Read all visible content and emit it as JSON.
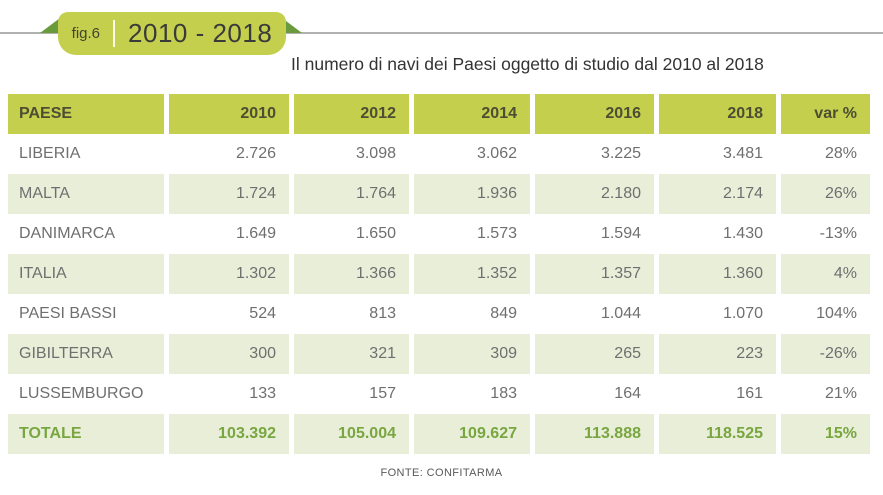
{
  "figure": {
    "label": "fig.6",
    "range": "2010 - 2018",
    "subtitle": "Il numero di navi dei Paesi oggetto di studio dal 2010 al 2018",
    "source": "FONTE: CONFITARMA"
  },
  "colors": {
    "accent_lime": "#c4cf4e",
    "accent_dark_green": "#699b3d",
    "row_alt_green": "#e9eed9",
    "total_text_green": "#78a63f",
    "line_gray": "#b1b1b1",
    "text_gray": "#6f6f6f",
    "header_text": "#4c4d33"
  },
  "table": {
    "columns": [
      "PAESE",
      "2010",
      "2012",
      "2014",
      "2016",
      "2018",
      "var %"
    ],
    "rows": [
      {
        "country": "LIBERIA",
        "values": [
          "2.726",
          "3.098",
          "3.062",
          "3.225",
          "3.481"
        ],
        "var": "28%"
      },
      {
        "country": "MALTA",
        "values": [
          "1.724",
          "1.764",
          "1.936",
          "2.180",
          "2.174"
        ],
        "var": "26%"
      },
      {
        "country": "DANIMARCA",
        "values": [
          "1.649",
          "1.650",
          "1.573",
          "1.594",
          "1.430"
        ],
        "var": "-13%"
      },
      {
        "country": "ITALIA",
        "values": [
          "1.302",
          "1.366",
          "1.352",
          "1.357",
          "1.360"
        ],
        "var": "4%"
      },
      {
        "country": "PAESI BASSI",
        "values": [
          "524",
          "813",
          "849",
          "1.044",
          "1.070"
        ],
        "var": "104%"
      },
      {
        "country": "GIBILTERRA",
        "values": [
          "300",
          "321",
          "309",
          "265",
          "223"
        ],
        "var": "-26%"
      },
      {
        "country": "LUSSEMBURGO",
        "values": [
          "133",
          "157",
          "183",
          "164",
          "161"
        ],
        "var": "21%"
      },
      {
        "country": "TOTALE",
        "values": [
          "103.392",
          "105.004",
          "109.627",
          "113.888",
          "118.525"
        ],
        "var": "15%",
        "is_total": true
      }
    ]
  },
  "chart_data": {
    "type": "table",
    "title": "Il numero di navi dei Paesi oggetto di studio dal 2010 al 2018",
    "columns": [
      "PAESE",
      "2010",
      "2012",
      "2014",
      "2016",
      "2018",
      "var %"
    ],
    "series": [
      {
        "name": "LIBERIA",
        "values": [
          2726,
          3098,
          3062,
          3225,
          3481
        ],
        "var_pct": 28
      },
      {
        "name": "MALTA",
        "values": [
          1724,
          1764,
          1936,
          2180,
          2174
        ],
        "var_pct": 26
      },
      {
        "name": "DANIMARCA",
        "values": [
          1649,
          1650,
          1573,
          1594,
          1430
        ],
        "var_pct": -13
      },
      {
        "name": "ITALIA",
        "values": [
          1302,
          1366,
          1352,
          1357,
          1360
        ],
        "var_pct": 4
      },
      {
        "name": "PAESI BASSI",
        "values": [
          524,
          813,
          849,
          1044,
          1070
        ],
        "var_pct": 104
      },
      {
        "name": "GIBILTERRA",
        "values": [
          300,
          321,
          309,
          265,
          223
        ],
        "var_pct": -26
      },
      {
        "name": "LUSSEMBURGO",
        "values": [
          133,
          157,
          183,
          164,
          161
        ],
        "var_pct": 21
      },
      {
        "name": "TOTALE",
        "values": [
          103392,
          105004,
          109627,
          113888,
          118525
        ],
        "var_pct": 15
      }
    ],
    "x": [
      2010,
      2012,
      2014,
      2016,
      2018
    ],
    "source": "FONTE: CONFITARMA"
  }
}
